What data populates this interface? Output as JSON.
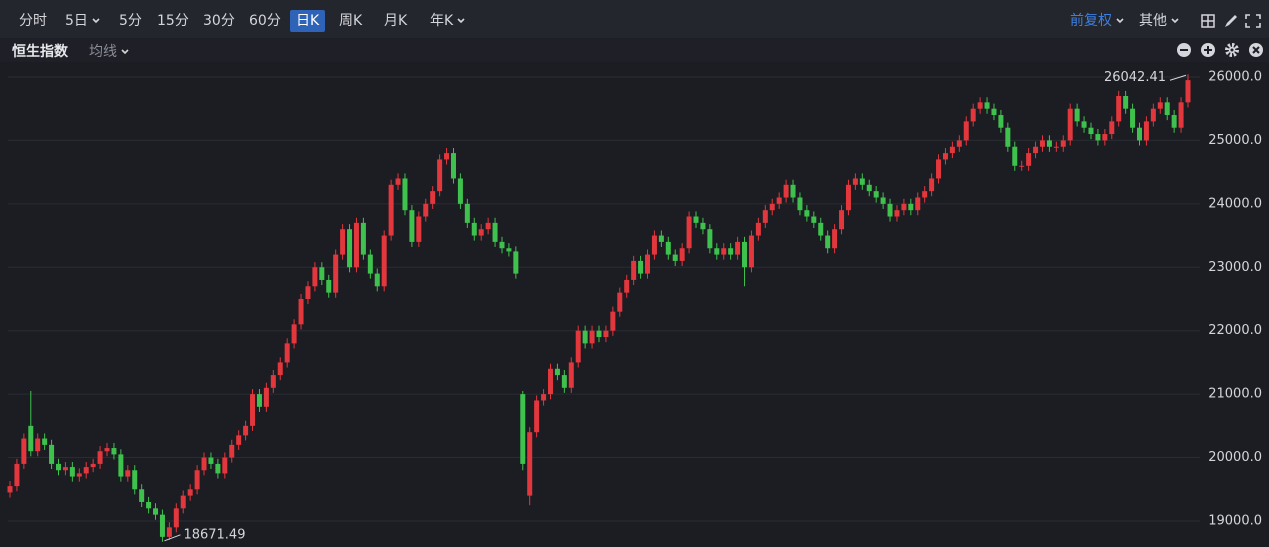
{
  "toolbar": {
    "periods": [
      "分时",
      "5日",
      "5分",
      "15分",
      "30分",
      "60分",
      "日K",
      "周K",
      "月K",
      "年K"
    ],
    "adjust": "前复权",
    "more": "其他",
    "indicator": "均线"
  },
  "chart_data": {
    "type": "candlestick",
    "title": "恒生指数",
    "open": [
      19450,
      19550,
      19900,
      20500,
      20100,
      20300,
      20200,
      19900,
      19800,
      19850,
      19700,
      19750,
      19850,
      19900,
      20100,
      20150,
      20050,
      19700,
      19800,
      19500,
      19300,
      19200,
      19100,
      18750,
      18900,
      19200,
      19400,
      19500,
      19800,
      20000,
      19900,
      19750,
      20000,
      20200,
      20350,
      20500,
      21000,
      20800,
      21100,
      21300,
      21500,
      21800,
      22100,
      22500,
      22700,
      23000,
      22800,
      22600,
      23200,
      23600,
      23000,
      23700,
      23200,
      22900,
      22700,
      23500,
      24300,
      24400,
      23900,
      23400,
      23800,
      24000,
      24200,
      24700,
      24800,
      24400,
      24000,
      23700,
      23500,
      23600,
      23700,
      23400,
      23300,
      23250,
      21000,
      19400,
      20400,
      20900,
      21000,
      21400,
      21300,
      21100,
      21500,
      22000,
      21800,
      22000,
      21900,
      22000,
      22300,
      22600,
      22800,
      23100,
      22900,
      23200,
      23500,
      23400,
      23200,
      23100,
      23300,
      23800,
      23700,
      23600,
      23300,
      23200,
      23300,
      23200,
      23400,
      23000,
      23500,
      23700,
      23900,
      24000,
      24100,
      24300,
      24100,
      23900,
      23800,
      23700,
      23500,
      23300,
      23600,
      23900,
      24300,
      24400,
      24300,
      24200,
      24100,
      24000,
      23800,
      23900,
      24000,
      23900,
      24100,
      24200,
      24400,
      24700,
      24800,
      24900,
      25000,
      25300,
      25500,
      25600,
      25500,
      25400,
      25200,
      24900,
      24600,
      24600,
      24800,
      24900,
      25000,
      24900,
      24900,
      25000,
      25500,
      25300,
      25200,
      25100,
      25000,
      25100,
      25300,
      25700,
      25500,
      25200,
      25000,
      25300,
      25500,
      25600,
      25400,
      25200,
      25600
    ],
    "high": [
      19630,
      19980,
      20380,
      21050,
      20380,
      20380,
      20280,
      19980,
      19930,
      19930,
      19830,
      19930,
      19980,
      20180,
      20230,
      20230,
      20130,
      19880,
      19880,
      19580,
      19380,
      19280,
      19180,
      18980,
      19280,
      19480,
      19580,
      19880,
      20080,
      20080,
      19980,
      20080,
      20280,
      20430,
      20580,
      21080,
      21080,
      21180,
      21380,
      21580,
      21880,
      22180,
      22580,
      22780,
      23080,
      23080,
      22880,
      23280,
      23680,
      23680,
      23780,
      23780,
      23280,
      22980,
      23580,
      24380,
      24480,
      24480,
      23980,
      23880,
      24080,
      24280,
      24780,
      24880,
      24880,
      24480,
      24080,
      23780,
      23680,
      23780,
      23780,
      23480,
      23380,
      23330,
      21050,
      20480,
      20980,
      21080,
      21480,
      21480,
      21380,
      21580,
      22080,
      22080,
      22080,
      22080,
      22080,
      22380,
      22680,
      22880,
      23180,
      23180,
      23280,
      23580,
      23580,
      23480,
      23280,
      23380,
      23880,
      23880,
      23780,
      23680,
      23380,
      23380,
      23380,
      23480,
      23480,
      23580,
      23780,
      23980,
      24080,
      24180,
      24380,
      24380,
      24180,
      23980,
      23880,
      23780,
      23580,
      23680,
      23980,
      24380,
      24480,
      24480,
      24380,
      24280,
      24180,
      24080,
      23980,
      24080,
      24080,
      24180,
      24280,
      24480,
      24780,
      24880,
      24980,
      25080,
      25380,
      25580,
      25680,
      25680,
      25580,
      25480,
      25280,
      24980,
      24680,
      24880,
      24980,
      25080,
      25080,
      24980,
      25080,
      25580,
      25580,
      25380,
      25280,
      25180,
      25180,
      25380,
      25780,
      25780,
      25580,
      25280,
      25380,
      25580,
      25680,
      25680,
      25480,
      25680,
      26042.41
    ],
    "low": [
      19370,
      19470,
      19820,
      20020,
      20020,
      20120,
      19820,
      19720,
      19720,
      19620,
      19620,
      19670,
      19770,
      19820,
      20020,
      19970,
      19620,
      19620,
      19420,
      19220,
      19120,
      19020,
      18671.49,
      18700,
      18820,
      19120,
      19320,
      19420,
      19720,
      19820,
      19670,
      19670,
      19920,
      20120,
      20270,
      20420,
      20720,
      20720,
      21020,
      21220,
      21420,
      21720,
      22020,
      22420,
      22620,
      22720,
      22520,
      22520,
      23120,
      22920,
      22920,
      23120,
      22820,
      22620,
      22620,
      23420,
      24220,
      23820,
      23320,
      23320,
      23720,
      23920,
      24120,
      24620,
      24320,
      23920,
      23620,
      23420,
      23420,
      23520,
      23320,
      23220,
      23170,
      22820,
      19800,
      19250,
      20320,
      20820,
      20920,
      21220,
      21020,
      21020,
      21420,
      21720,
      21720,
      21820,
      21820,
      21920,
      22220,
      22520,
      22720,
      22820,
      22820,
      23120,
      23320,
      23120,
      23020,
      23020,
      23220,
      23620,
      23520,
      23220,
      23120,
      23120,
      23120,
      23120,
      22700,
      22920,
      23420,
      23620,
      23820,
      23920,
      24020,
      24020,
      23820,
      23720,
      23620,
      23420,
      23220,
      23220,
      23520,
      23820,
      24220,
      24220,
      24120,
      24020,
      23920,
      23720,
      23720,
      23820,
      23820,
      23820,
      24020,
      24120,
      24320,
      24620,
      24720,
      24820,
      24920,
      25220,
      25420,
      25420,
      25320,
      25120,
      24820,
      24520,
      24520,
      24520,
      24720,
      24820,
      24820,
      24820,
      24820,
      24920,
      25220,
      25120,
      25020,
      24920,
      24920,
      25020,
      25220,
      25420,
      25120,
      24920,
      24920,
      25220,
      25420,
      25320,
      25120,
      25120,
      25520
    ],
    "close": [
      19550,
      19900,
      20300,
      20100,
      20300,
      20200,
      19900,
      19800,
      19850,
      19700,
      19750,
      19850,
      19900,
      20100,
      20150,
      20050,
      19700,
      19800,
      19500,
      19300,
      19200,
      19100,
      18750,
      18900,
      19200,
      19400,
      19500,
      19800,
      20000,
      19900,
      19750,
      20000,
      20200,
      20350,
      20500,
      21000,
      20800,
      21100,
      21300,
      21500,
      21800,
      22100,
      22500,
      22700,
      23000,
      22800,
      22600,
      23200,
      23600,
      23000,
      23700,
      23200,
      22900,
      22700,
      23500,
      24300,
      24400,
      23900,
      23400,
      23800,
      24000,
      24200,
      24700,
      24800,
      24400,
      24000,
      23700,
      23500,
      23600,
      23700,
      23400,
      23300,
      23250,
      22900,
      19900,
      20400,
      20900,
      21000,
      21400,
      21300,
      21100,
      21500,
      22000,
      21800,
      22000,
      21900,
      22000,
      22300,
      22600,
      22800,
      23100,
      22900,
      23200,
      23500,
      23400,
      23200,
      23100,
      23300,
      23800,
      23700,
      23600,
      23300,
      23200,
      23300,
      23200,
      23400,
      23000,
      23500,
      23700,
      23900,
      24000,
      24100,
      24300,
      24100,
      23900,
      23800,
      23700,
      23500,
      23300,
      23600,
      23900,
      24300,
      24400,
      24300,
      24200,
      24100,
      24000,
      23800,
      23900,
      24000,
      23900,
      24100,
      24200,
      24400,
      24700,
      24800,
      24900,
      25000,
      25300,
      25500,
      25600,
      25500,
      25400,
      25200,
      24900,
      24600,
      24600,
      24800,
      24900,
      25000,
      24900,
      24900,
      25000,
      25500,
      25300,
      25200,
      25100,
      25000,
      25100,
      25300,
      25700,
      25500,
      25200,
      25000,
      25300,
      25500,
      25600,
      25400,
      25200,
      25600,
      25950
    ],
    "ylim": [
      18590,
      26236
    ],
    "yticks": [
      {
        "value": 19000,
        "label": "19000.0"
      },
      {
        "value": 20000,
        "label": "20000.0"
      },
      {
        "value": 21000,
        "label": "21000.0"
      },
      {
        "value": 22000,
        "label": "22000.0"
      },
      {
        "value": 23000,
        "label": "23000.0"
      },
      {
        "value": 24000,
        "label": "24000.0"
      },
      {
        "value": 25000,
        "label": "25000.0"
      },
      {
        "value": 26000,
        "label": "26000.0"
      }
    ],
    "grid": true,
    "up_color": "#e2373d",
    "down_color": "#3ec24d"
  }
}
